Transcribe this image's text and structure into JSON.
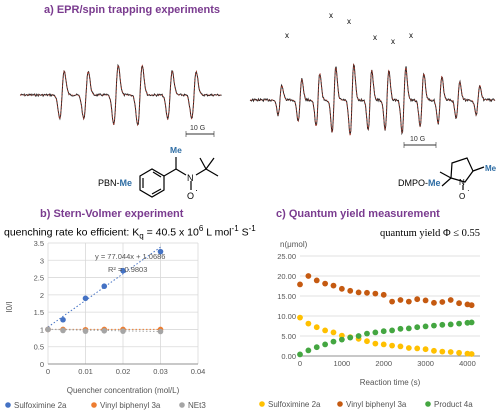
{
  "titles": {
    "a": "a) EPR/spin trapping experiments",
    "b": "b) Stern-Volmer experiment",
    "c": "c) Quantum yield measurement"
  },
  "epr": {
    "scale_label_left": "10 G",
    "scale_label_right": "10 G",
    "adduct_left_prefix": "PBN-",
    "adduct_left_suffix": "Me",
    "adduct_right_prefix": "DMPO-",
    "adduct_right_suffix": "Me",
    "mol_me": "Me",
    "mol_n": "N",
    "mol_o": "O",
    "mol_oxy": "·",
    "peak_marker": "x",
    "colors": {
      "experimental": "#222222",
      "simulated": "#c0392b",
      "methyl": "#2e6da4"
    }
  },
  "stern_volmer": {
    "note_prefix": "quenching rate ko efficient: K",
    "note_sub": "q",
    "note_value": " = 40.5 x 10",
    "note_exp": "6",
    "note_units": " L mol",
    "note_units_exp": "-1",
    "note_units_s": " S",
    "note_units_s_exp": "-1",
    "equation": "y = 77.044x + 1.0686",
    "r2": "R² = 0.9803"
  },
  "quantum": {
    "note": "quantum yield Φ ≤ 0.55"
  },
  "chart_data": [
    {
      "type": "scatter",
      "title": "",
      "xlabel": "Quencher concentration (mol/L)",
      "ylabel": "I0/I",
      "xlim": [
        0,
        0.04
      ],
      "ylim": [
        0,
        3.5
      ],
      "x_ticks": [
        0,
        0.01,
        0.02,
        0.03,
        0.04
      ],
      "x_tick_labels": [
        "0",
        "0.01",
        "0.02",
        "0.03",
        "0.04"
      ],
      "y_ticks": [
        0,
        0.5,
        1,
        1.5,
        2,
        2.5,
        3,
        3.5
      ],
      "y_tick_labels": [
        "0",
        "0.5",
        "1",
        "1.5",
        "2",
        "2.5",
        "3",
        "3.5"
      ],
      "grid": true,
      "legend_position": "bottom",
      "trendline": {
        "slope": 77.044,
        "intercept": 1.0686,
        "x_range": [
          0,
          0.03
        ]
      },
      "series": [
        {
          "name": "Sulfoximine 2a",
          "color": "#4472c4",
          "x": [
            0,
            0.004,
            0.01,
            0.015,
            0.02,
            0.03
          ],
          "y": [
            1.0,
            1.28,
            1.9,
            2.25,
            2.7,
            3.25
          ]
        },
        {
          "name": "Vinyl biphenyl 3a",
          "color": "#ed7d31",
          "x": [
            0,
            0.004,
            0.01,
            0.015,
            0.02,
            0.03
          ],
          "y": [
            1.0,
            1.0,
            0.99,
            1.0,
            1.0,
            1.0
          ]
        },
        {
          "name": "NEt3",
          "color": "#a5a5a5",
          "x": [
            0,
            0.004,
            0.01,
            0.015,
            0.02,
            0.03
          ],
          "y": [
            1.0,
            0.97,
            0.95,
            0.96,
            0.95,
            0.94
          ]
        }
      ]
    },
    {
      "type": "scatter",
      "title": "",
      "xlabel": "Reaction time (s)",
      "ylabel": "n(μmol)",
      "xlim": [
        0,
        4300
      ],
      "ylim": [
        0,
        25
      ],
      "x_ticks": [
        0,
        1000,
        2000,
        3000,
        4000
      ],
      "x_tick_labels": [
        "0",
        "1000",
        "2000",
        "3000",
        "4000"
      ],
      "y_ticks": [
        0,
        5,
        10,
        15,
        20,
        25
      ],
      "y_tick_labels": [
        "0.00",
        "5.00",
        "10.00",
        "15.00",
        "20.00",
        "25.00"
      ],
      "grid": true,
      "legend_position": "bottom",
      "series": [
        {
          "name": "Sulfoximine 2a",
          "color": "#ffc000",
          "x": [
            0,
            200,
            400,
            600,
            800,
            1000,
            1200,
            1400,
            1600,
            1800,
            2000,
            2200,
            2400,
            2600,
            2800,
            3000,
            3200,
            3400,
            3600,
            3800,
            4000,
            4100
          ],
          "y": [
            9.6,
            8.1,
            7.2,
            6.4,
            5.9,
            5.1,
            4.7,
            4.3,
            3.7,
            3.1,
            2.9,
            2.6,
            2.4,
            2.0,
            1.9,
            1.7,
            1.3,
            1.1,
            1.0,
            0.8,
            0.6,
            0.5
          ]
        },
        {
          "name": "Vinyl biphenyl 3a",
          "color": "#c55a11",
          "x": [
            0,
            200,
            400,
            600,
            800,
            1000,
            1200,
            1400,
            1600,
            1800,
            2000,
            2200,
            2400,
            2600,
            2800,
            3000,
            3200,
            3400,
            3600,
            3800,
            4000,
            4100
          ],
          "y": [
            17.9,
            20.0,
            18.9,
            18.1,
            17.6,
            16.8,
            16.3,
            15.9,
            15.8,
            15.6,
            15.3,
            13.6,
            14.0,
            13.6,
            14.2,
            13.9,
            13.3,
            13.5,
            14.0,
            13.2,
            12.9,
            12.7
          ]
        },
        {
          "name": "Product 4a",
          "color": "#44a641",
          "x": [
            0,
            200,
            400,
            600,
            800,
            1000,
            1200,
            1400,
            1600,
            1800,
            2000,
            2200,
            2400,
            2600,
            2800,
            3000,
            3200,
            3400,
            3600,
            3800,
            4000,
            4100
          ],
          "y": [
            0.4,
            1.4,
            2.2,
            2.9,
            3.6,
            4.1,
            4.6,
            5.0,
            5.6,
            5.9,
            6.2,
            6.4,
            6.8,
            6.9,
            7.2,
            7.4,
            7.6,
            7.8,
            7.9,
            8.1,
            8.3,
            8.4
          ]
        }
      ]
    }
  ]
}
